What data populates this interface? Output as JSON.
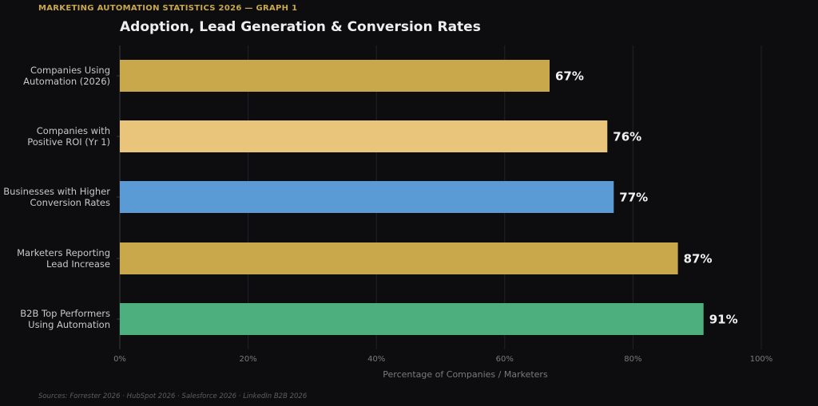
{
  "header": {
    "kicker": "MARKETING AUTOMATION STATISTICS 2026 — GRAPH 1"
  },
  "footer": {
    "sources": "Sources: Forrester 2026 · HubSpot 2026 · Salesforce 2026 · LinkedIn B2B 2026"
  },
  "chart_data": {
    "type": "bar",
    "orientation": "horizontal",
    "title": "Adoption, Lead Generation & Conversion Rates",
    "xlabel": "Percentage of Companies / Marketers",
    "ylabel": "",
    "xlim": [
      0,
      100
    ],
    "x_ticks": [
      0,
      20,
      40,
      60,
      80,
      100
    ],
    "x_tick_labels": [
      "0%",
      "20%",
      "40%",
      "60%",
      "80%",
      "100%"
    ],
    "grid": true,
    "categories": [
      [
        "Companies Using",
        "Automation (2026)"
      ],
      [
        "Companies with",
        "Positive ROI (Yr 1)"
      ],
      [
        "Businesses with Higher",
        "Conversion Rates"
      ],
      [
        "Marketers Reporting",
        "Lead Increase"
      ],
      [
        "B2B Top Performers",
        "Using Automation"
      ]
    ],
    "values": [
      67,
      76,
      77,
      87,
      91
    ],
    "value_labels": [
      "67%",
      "76%",
      "77%",
      "87%",
      "91%"
    ],
    "colors": [
      "#c9a84c",
      "#e8c57a",
      "#5b9bd5",
      "#c9a84c",
      "#4caf7d"
    ]
  },
  "theme": {
    "background": "#0d0d0f",
    "grid_color": "#232326",
    "axis_color": "#3a3a3e"
  }
}
